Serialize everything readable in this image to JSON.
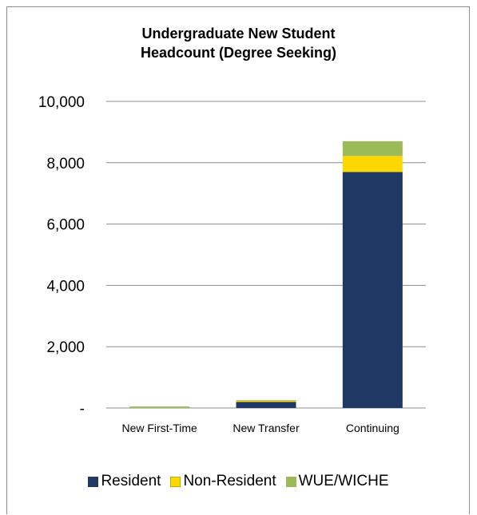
{
  "chart_data": {
    "type": "bar",
    "stacked": true,
    "title_lines": [
      "Undergraduate New Student",
      "Headcount (Degree Seeking)"
    ],
    "categories": [
      "New First-Time",
      "New Transfer",
      "Continuing"
    ],
    "series": [
      {
        "name": "Resident",
        "color": "#1f3864",
        "values": [
          0,
          200,
          7700
        ]
      },
      {
        "name": "Non-Resident",
        "color": "#ffd700",
        "values": [
          0,
          40,
          520
        ]
      },
      {
        "name": "WUE/WICHE",
        "color": "#9bbb59",
        "values": [
          50,
          20,
          480
        ]
      }
    ],
    "ylim": [
      0,
      10000
    ],
    "yticks": [
      0,
      2000,
      4000,
      6000,
      8000,
      10000
    ],
    "ytick_labels": [
      "-",
      "2,000",
      "4,000",
      "6,000",
      "8,000",
      "10,000"
    ],
    "grid": true,
    "legend_position": "bottom"
  }
}
